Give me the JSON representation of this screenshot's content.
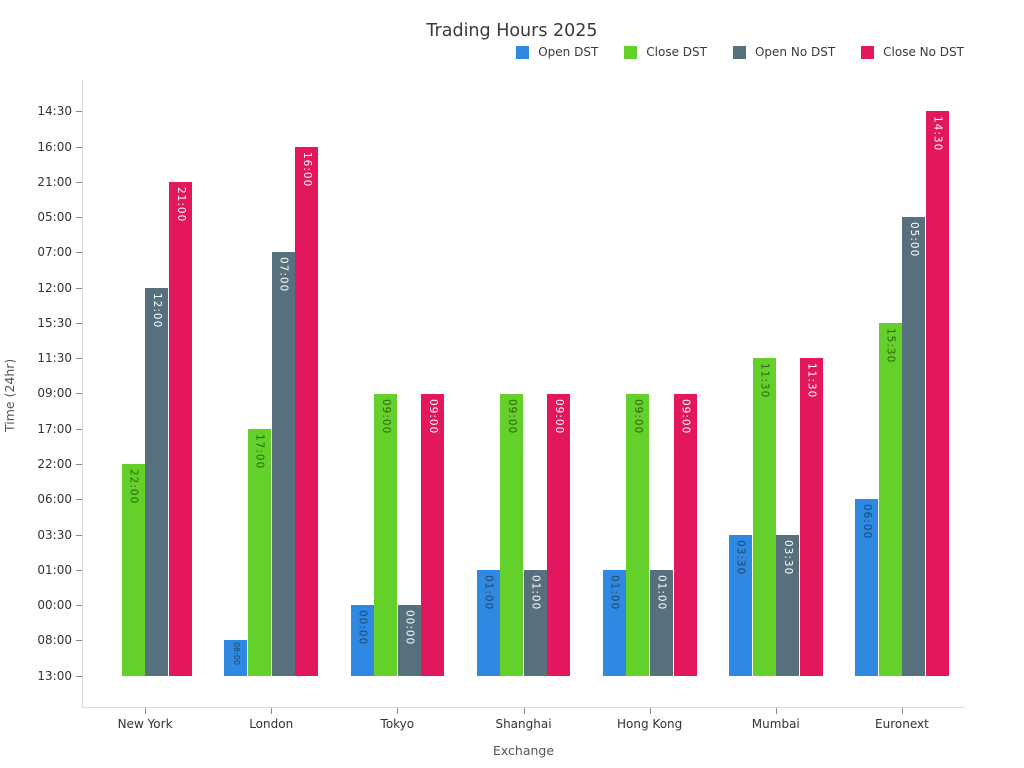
{
  "title": "Trading Hours 2025",
  "axes": {
    "x_label": "Exchange",
    "y_label": "Time (24hr)"
  },
  "chart_data": {
    "type": "bar",
    "title": "Trading Hours 2025",
    "xlabel": "Exchange",
    "ylabel": "Time (24hr)",
    "categories": [
      "New York",
      "London",
      "Tokyo",
      "Shanghai",
      "Hong Kong",
      "Mumbai",
      "Euronext"
    ],
    "y_categories_bottom_to_top": [
      "13:00",
      "08:00",
      "00:00",
      "01:00",
      "03:30",
      "06:00",
      "22:00",
      "17:00",
      "09:00",
      "11:30",
      "15:30",
      "12:00",
      "07:00",
      "05:00",
      "21:00",
      "16:00",
      "14:30"
    ],
    "grid": false,
    "legend_position": "top-right",
    "series": [
      {
        "name": "Open DST",
        "color": "#2F88E2",
        "label_color": "#1a4868",
        "values": [
          "13:00",
          "08:00",
          "00:00",
          "01:00",
          "01:00",
          "03:30",
          "06:00"
        ]
      },
      {
        "name": "Close DST",
        "color": "#64D02A",
        "label_color": "#2f6410",
        "values": [
          "22:00",
          "17:00",
          "09:00",
          "09:00",
          "09:00",
          "11:30",
          "15:30"
        ]
      },
      {
        "name": "Open No DST",
        "color": "#57707E",
        "label_color": "#ffffff",
        "values": [
          "12:00",
          "07:00",
          "00:00",
          "01:00",
          "01:00",
          "03:30",
          "05:00"
        ]
      },
      {
        "name": "Close No DST",
        "color": "#E3175E",
        "label_color": "#ffffff",
        "values": [
          "21:00",
          "16:00",
          "09:00",
          "09:00",
          "09:00",
          "11:30",
          "14:30"
        ]
      }
    ]
  }
}
